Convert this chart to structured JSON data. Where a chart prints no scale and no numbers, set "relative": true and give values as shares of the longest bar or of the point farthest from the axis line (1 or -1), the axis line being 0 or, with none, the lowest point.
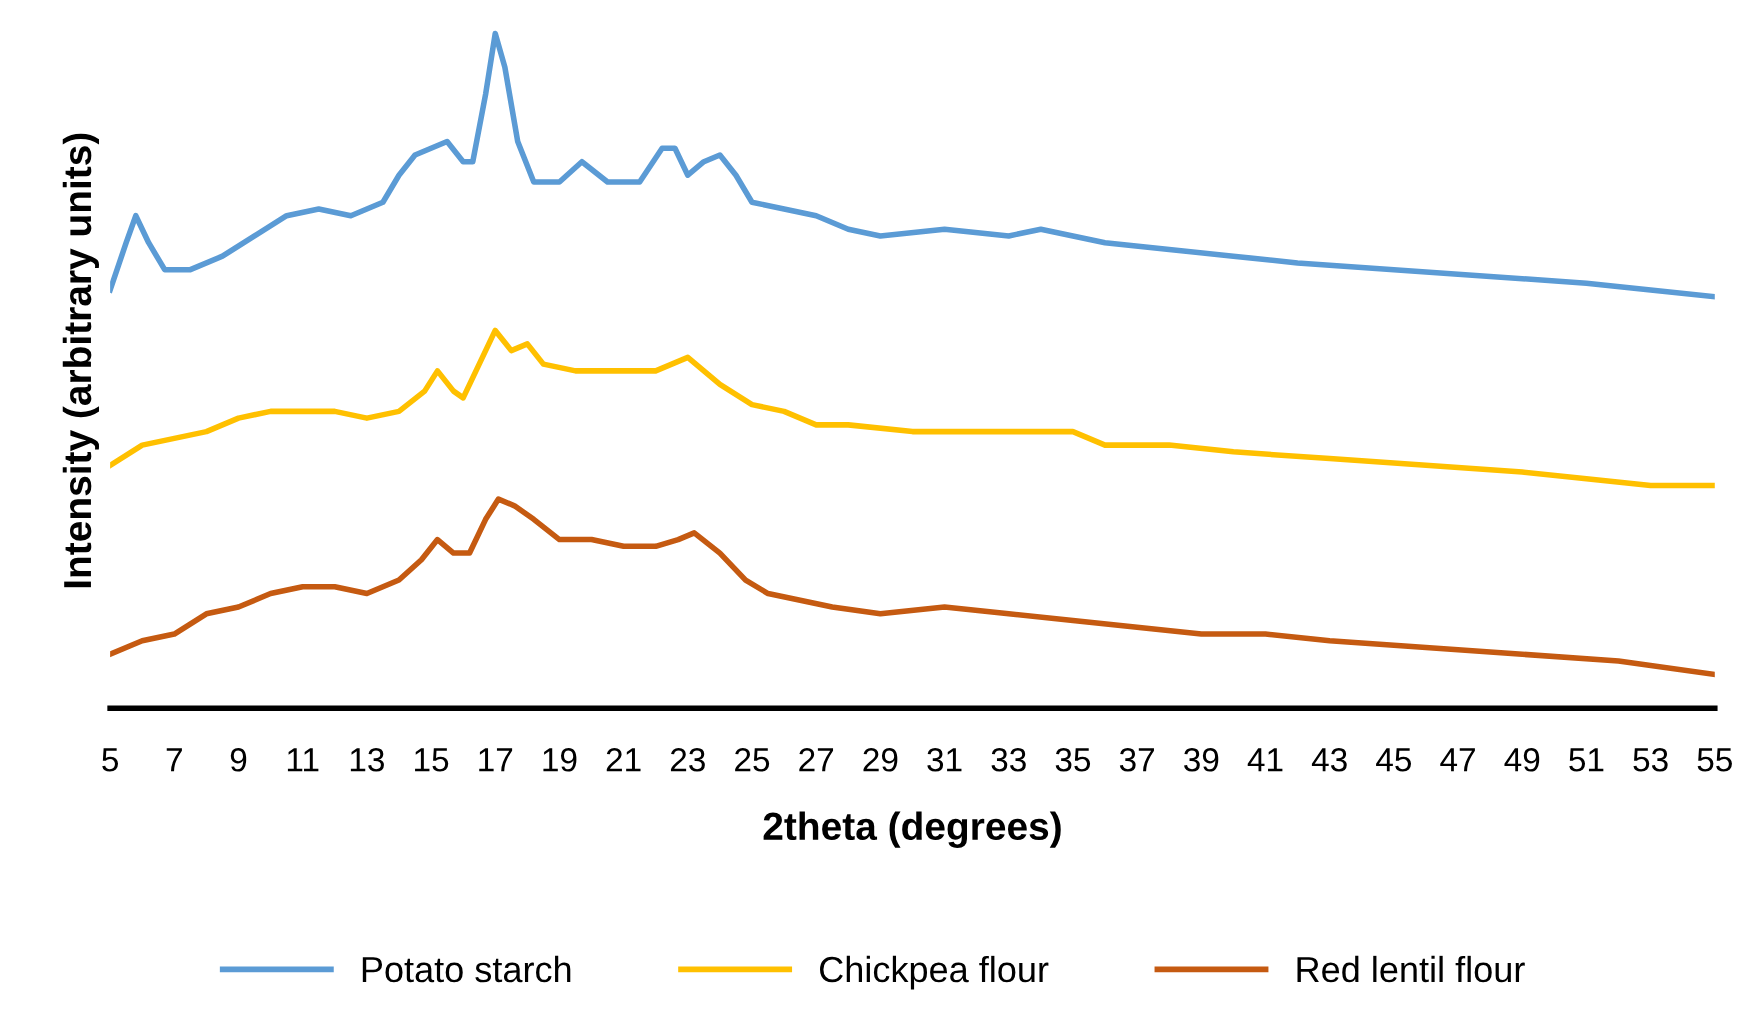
{
  "chart_data": {
    "type": "line",
    "relative": true,
    "xlabel": "2theta (degrees)",
    "ylabel": "Intensity (arbitrary units)",
    "xlim": [
      5,
      55
    ],
    "xticks": [
      5,
      7,
      9,
      11,
      13,
      15,
      17,
      19,
      21,
      23,
      25,
      27,
      29,
      31,
      33,
      35,
      37,
      39,
      41,
      43,
      45,
      47,
      49,
      51,
      53,
      55
    ],
    "legend": "bottom",
    "marker": "none",
    "line_style": "solid",
    "series": [
      {
        "name": "Potato starch",
        "color": "#5b9bd5",
        "x": [
          5,
          5.5,
          5.8,
          6.2,
          6.7,
          7.5,
          8.5,
          9.5,
          10.5,
          11.5,
          12.5,
          13.5,
          14,
          14.5,
          15,
          15.5,
          16,
          16.3,
          16.7,
          17,
          17.3,
          17.7,
          18.2,
          19,
          19.7,
          20.5,
          21.5,
          22.2,
          22.6,
          23,
          23.5,
          24,
          24.5,
          25,
          26,
          27,
          28,
          29,
          31,
          33,
          34,
          35,
          36,
          38,
          40,
          42,
          45,
          48,
          51,
          53,
          55
        ],
        "values": [
          0.62,
          0.69,
          0.73,
          0.69,
          0.65,
          0.65,
          0.67,
          0.7,
          0.73,
          0.74,
          0.73,
          0.75,
          0.79,
          0.82,
          0.83,
          0.84,
          0.81,
          0.81,
          0.91,
          1,
          0.95,
          0.84,
          0.78,
          0.78,
          0.81,
          0.78,
          0.78,
          0.83,
          0.83,
          0.79,
          0.81,
          0.82,
          0.79,
          0.75,
          0.74,
          0.73,
          0.71,
          0.7,
          0.71,
          0.7,
          0.71,
          0.7,
          0.69,
          0.68,
          0.67,
          0.66,
          0.65,
          0.64,
          0.63,
          0.62,
          0.61
        ]
      },
      {
        "name": "Chickpea flour",
        "color": "#ffc000",
        "x": [
          5,
          6,
          7,
          8,
          9,
          10,
          11,
          12,
          13,
          14,
          14.8,
          15.2,
          15.7,
          16,
          16.5,
          17,
          17.5,
          18,
          18.5,
          19.5,
          21,
          22,
          23,
          23.5,
          24,
          25,
          26,
          27,
          28,
          30,
          33,
          35,
          36,
          38,
          40,
          43,
          46,
          49,
          51,
          53,
          55
        ],
        "values": [
          0.36,
          0.39,
          0.4,
          0.41,
          0.43,
          0.44,
          0.44,
          0.44,
          0.43,
          0.44,
          0.47,
          0.5,
          0.47,
          0.46,
          0.51,
          0.56,
          0.53,
          0.54,
          0.51,
          0.5,
          0.5,
          0.5,
          0.52,
          0.5,
          0.48,
          0.45,
          0.44,
          0.42,
          0.42,
          0.41,
          0.41,
          0.41,
          0.39,
          0.39,
          0.38,
          0.37,
          0.36,
          0.35,
          0.34,
          0.33,
          0.33
        ]
      },
      {
        "name": "Red lentil flour",
        "color": "#c55a11",
        "x": [
          5,
          6,
          7,
          8,
          9,
          10,
          11,
          12,
          13,
          14,
          14.7,
          15.2,
          15.7,
          16.2,
          16.7,
          17.1,
          17.6,
          18.2,
          19,
          20,
          21,
          22,
          22.7,
          23.2,
          24,
          24.8,
          25.5,
          26.5,
          27.5,
          29,
          31,
          33,
          35,
          37,
          39,
          41,
          43,
          46,
          49,
          52,
          55
        ],
        "values": [
          0.08,
          0.1,
          0.11,
          0.14,
          0.15,
          0.17,
          0.18,
          0.18,
          0.17,
          0.19,
          0.22,
          0.25,
          0.23,
          0.23,
          0.28,
          0.31,
          0.3,
          0.28,
          0.25,
          0.25,
          0.24,
          0.24,
          0.25,
          0.26,
          0.23,
          0.19,
          0.17,
          0.16,
          0.15,
          0.14,
          0.15,
          0.14,
          0.13,
          0.12,
          0.11,
          0.11,
          0.1,
          0.09,
          0.08,
          0.07,
          0.05
        ]
      }
    ]
  }
}
